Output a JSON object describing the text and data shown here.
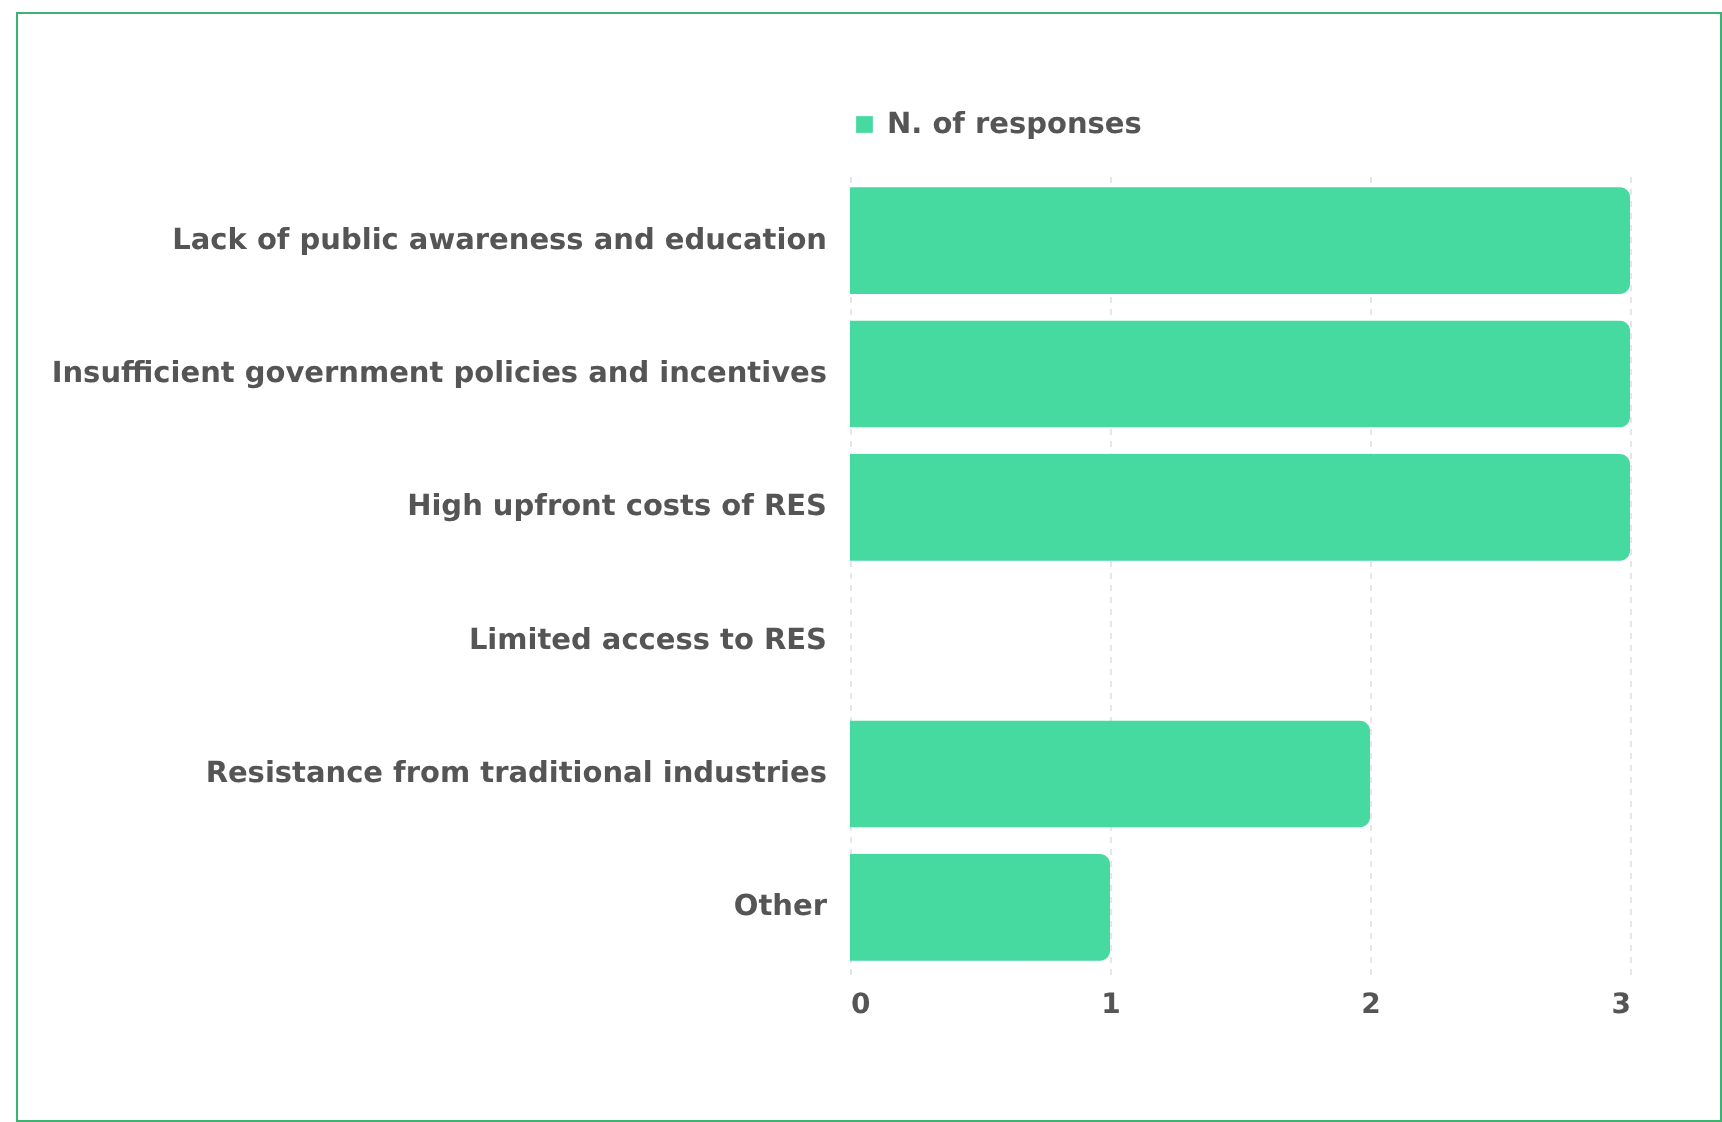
{
  "chart_data": {
    "type": "bar",
    "orientation": "horizontal",
    "categories": [
      "Lack of public awareness and education",
      "Insufficient government policies and incentives",
      "High upfront costs of RES",
      "Limited access to RES",
      "Resistance from traditional industries",
      "Other"
    ],
    "series": [
      {
        "name": "N. of responses",
        "color": "#46d9a0",
        "values": [
          3,
          3,
          3,
          0,
          2,
          1
        ]
      }
    ],
    "xlim": [
      0,
      3
    ],
    "xticks": [
      0,
      1,
      2,
      3
    ],
    "grid": "x",
    "legend": "top"
  }
}
